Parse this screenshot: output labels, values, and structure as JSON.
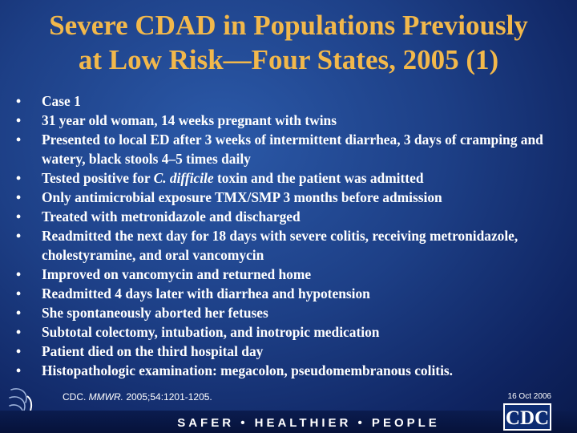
{
  "title": {
    "line1": "Severe CDAD in Populations Previously",
    "line2": "at Low Risk—Four States, 2005 (1)"
  },
  "bullets": [
    {
      "text": "Case 1"
    },
    {
      "text": "31 year old woman, 14 weeks pregnant with twins"
    },
    {
      "text": "Presented to local ED after 3 weeks of intermittent diarrhea, 3 days of cramping and watery, black stools 4–5 times daily"
    },
    {
      "before": "Tested positive for ",
      "italic": "C. difficile",
      "after": " toxin and the patient was admitted"
    },
    {
      "text": "Only antimicrobial exposure TMX/SMP 3 months before admission"
    },
    {
      "text": "Treated with metronidazole and discharged"
    },
    {
      "text": "Readmitted the next day for 18 days with severe colitis, receiving metronidazole, cholestyramine, and oral vancomycin"
    },
    {
      "text": "Improved on vancomycin and returned home"
    },
    {
      "text": "Readmitted 4 days later with diarrhea and hypotension"
    },
    {
      "text": "She spontaneously aborted her fetuses"
    },
    {
      "text": "Subtotal colectomy, intubation, and inotropic medication"
    },
    {
      "text": "Patient died on the third hospital day"
    },
    {
      "text": "Histopathologic examination: megacolon, pseudomembranous colitis."
    }
  ],
  "citation": {
    "prefix": "CDC. ",
    "journal": "MMWR.",
    "suffix": " 2005;54:1201-1205."
  },
  "date": "16 Oct 2006",
  "footer": {
    "tagline": "SAFER • HEALTHIER • PEOPLE",
    "logo_text": "CDC",
    "seal_icon": "hhs-eagle-seal-icon"
  },
  "colors": {
    "title": "#f2b84b",
    "text": "#ffffff",
    "background": "#1d3f86",
    "footer": "#0b1c4f"
  }
}
